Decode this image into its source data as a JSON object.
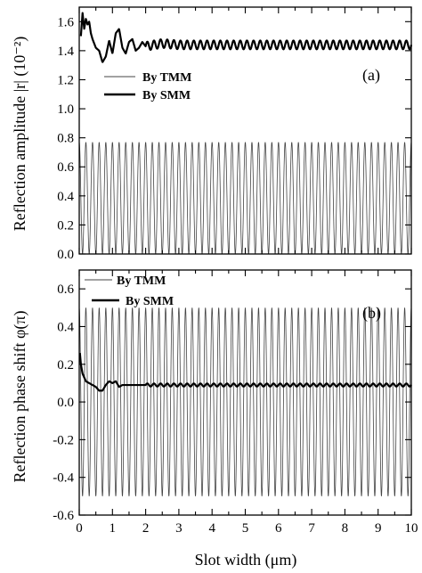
{
  "figure": {
    "xlabel": "Slot width (μm)"
  },
  "chart_data": [
    {
      "type": "line",
      "panel_label": "(a)",
      "ylabel": "Reflection amplitude  |r|  (10⁻²)",
      "xlim": [
        0,
        10
      ],
      "ylim": [
        0.0,
        1.7
      ],
      "x_ticks": [
        "0",
        "1",
        "2",
        "3",
        "4",
        "5",
        "6",
        "7",
        "8",
        "9",
        "10"
      ],
      "y_ticks": [
        "0.0",
        "0.2",
        "0.4",
        "0.6",
        "0.8",
        "1.0",
        "1.2",
        "1.4",
        "1.6"
      ],
      "legend_position": "center-left",
      "series": [
        {
          "name": "By TMM",
          "style": "thin",
          "color": "#444444",
          "description_values": {
            "min": 0.0,
            "max": 0.77,
            "period_um": 0.2
          }
        },
        {
          "name": "By SMM",
          "style": "thick",
          "color": "#000000",
          "x": [
            0.05,
            0.1,
            0.15,
            0.2,
            0.25,
            0.3,
            0.35,
            0.4,
            0.5,
            0.6,
            0.7,
            0.8,
            0.9,
            1.0,
            1.1,
            1.2,
            1.3,
            1.4,
            1.5,
            1.6,
            1.7,
            1.8,
            1.9,
            2.0,
            2.5,
            3,
            4,
            5,
            6,
            7,
            8,
            9,
            10
          ],
          "y": [
            1.5,
            1.66,
            1.55,
            1.62,
            1.58,
            1.6,
            1.52,
            1.48,
            1.42,
            1.4,
            1.32,
            1.36,
            1.47,
            1.38,
            1.52,
            1.55,
            1.42,
            1.38,
            1.46,
            1.48,
            1.4,
            1.42,
            1.46,
            1.43,
            1.45,
            1.44,
            1.44,
            1.44,
            1.44,
            1.44,
            1.44,
            1.44,
            1.44
          ],
          "oscillation_amplitude_tail": 0.03
        }
      ]
    },
    {
      "type": "line",
      "panel_label": "(b)",
      "ylabel": "Reflection phase shift  φ(π)",
      "xlim": [
        0,
        10
      ],
      "ylim": [
        -0.6,
        0.7
      ],
      "x_ticks": [
        "0",
        "1",
        "2",
        "3",
        "4",
        "5",
        "6",
        "7",
        "8",
        "9",
        "10"
      ],
      "y_ticks": [
        "-0.6",
        "-0.4",
        "-0.2",
        "0.0",
        "0.2",
        "0.4",
        "0.6"
      ],
      "legend_position": "top-left",
      "series": [
        {
          "name": "By TMM",
          "style": "thin",
          "color": "#444444",
          "description_values": {
            "min": -0.5,
            "max": 0.5,
            "period_um": 0.2
          }
        },
        {
          "name": "By SMM",
          "style": "thick",
          "color": "#000000",
          "x": [
            0.02,
            0.05,
            0.1,
            0.2,
            0.3,
            0.4,
            0.5,
            0.6,
            0.7,
            0.8,
            0.9,
            1.0,
            1.1,
            1.2,
            1.3,
            1.5,
            2,
            3,
            4,
            5,
            6,
            7,
            8,
            9,
            10
          ],
          "y": [
            0.26,
            0.2,
            0.15,
            0.11,
            0.1,
            0.09,
            0.08,
            0.06,
            0.06,
            0.09,
            0.11,
            0.1,
            0.11,
            0.08,
            0.09,
            0.09,
            0.09,
            0.09,
            0.09,
            0.09,
            0.09,
            0.09,
            0.09,
            0.09,
            0.09
          ],
          "oscillation_amplitude_tail": 0.008
        }
      ]
    }
  ]
}
